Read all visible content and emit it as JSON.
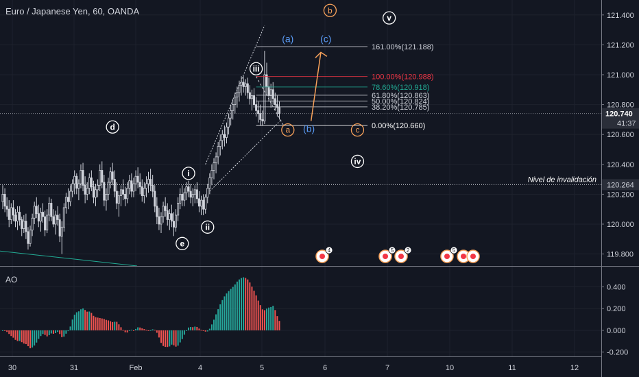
{
  "chart_data": {
    "type": "candlestick",
    "title": "Euro / Japanese Yen, 60, OANDA",
    "symbol": "EURJPY",
    "price_scale": {
      "ylim": [
        119.72,
        121.5
      ],
      "ticks": [
        "121.400",
        "121.200",
        "121.000",
        "120.800",
        "120.600",
        "120.400",
        "120.200",
        "120.000",
        "119.800"
      ],
      "tick_values": [
        121.4,
        121.2,
        121.0,
        120.8,
        120.6,
        120.4,
        120.2,
        120.0,
        119.8
      ],
      "current_price": "120.740",
      "countdown": "41:37",
      "invalidation_price": "120.264"
    },
    "time_axis": {
      "labels": [
        "30",
        "31",
        "Feb",
        "4",
        "5",
        "6",
        "7",
        "10",
        "11",
        "12"
      ]
    },
    "fib_levels": [
      {
        "label": "161.00%(121.188)",
        "value": 121.188,
        "color": "#d1d4dc"
      },
      {
        "label": "100.00%(120.988)",
        "value": 120.988,
        "color": "#f23645"
      },
      {
        "label": "78.60%(120.918)",
        "value": 120.918,
        "color": "#22ab94"
      },
      {
        "label": "61.80%(120.863)",
        "value": 120.863,
        "color": "#d1d4dc"
      },
      {
        "label": "50.00%(120.824)",
        "value": 120.824,
        "color": "#d1d4dc"
      },
      {
        "label": "38.20%(120.785)",
        "value": 120.785,
        "color": "#d1d4dc"
      },
      {
        "label": "0.00%(120.660)",
        "value": 120.66,
        "color": "#ffffff"
      }
    ],
    "invalidation_label": "Nivel de invalidación",
    "wave_labels": [
      {
        "text": "d",
        "style": "circle-white",
        "bar": 52,
        "price": 120.65
      },
      {
        "text": "e",
        "style": "circle-white",
        "bar": 85,
        "price": 119.87
      },
      {
        "text": "i",
        "style": "circle-white",
        "bar": 88,
        "price": 120.34
      },
      {
        "text": "ii",
        "style": "circle-white",
        "bar": 97,
        "price": 119.98
      },
      {
        "text": "iii",
        "style": "circle-white",
        "bar": 120,
        "price": 121.04
      },
      {
        "text": "iv",
        "style": "circle-white",
        "bar": 168,
        "price": 120.42
      },
      {
        "text": "v",
        "style": "circle-white",
        "bar": 183,
        "price": 121.38
      },
      {
        "text": "(a)",
        "style": "blue",
        "bar": 135,
        "price": 121.24
      },
      {
        "text": "(b)",
        "style": "blue",
        "bar": 145,
        "price": 120.64
      },
      {
        "text": "(c)",
        "style": "blue",
        "bar": 153,
        "price": 121.24
      },
      {
        "text": "a",
        "style": "circle-orange",
        "bar": 135,
        "price": 120.63
      },
      {
        "text": "b",
        "style": "circle-orange",
        "bar": 155,
        "price": 121.43
      },
      {
        "text": "c",
        "style": "circle-orange",
        "bar": 168,
        "price": 120.63
      }
    ],
    "event_badges": [
      "4",
      "5",
      "2",
      "5"
    ],
    "ao": {
      "name": "AO",
      "ticks": [
        "0.400",
        "0.200",
        "0.000",
        "-0.200"
      ],
      "tick_values": [
        0.4,
        0.2,
        0.0,
        -0.2
      ],
      "ylim": [
        -0.24,
        0.58
      ]
    },
    "ohlc": [
      [
        120.15,
        120.26,
        120.1,
        120.2
      ],
      [
        120.2,
        120.24,
        120.08,
        120.12
      ],
      [
        120.12,
        120.18,
        120.05,
        120.1
      ],
      [
        120.1,
        120.16,
        119.98,
        120.03
      ],
      [
        120.03,
        120.14,
        120.0,
        120.11
      ],
      [
        120.11,
        120.16,
        120.02,
        120.06
      ],
      [
        120.06,
        120.1,
        119.98,
        120.02
      ],
      [
        120.02,
        120.12,
        119.96,
        120.08
      ],
      [
        120.08,
        120.12,
        119.99,
        120.03
      ],
      [
        120.03,
        120.05,
        119.92,
        119.97
      ],
      [
        119.97,
        120.06,
        119.94,
        120.02
      ],
      [
        120.02,
        120.07,
        119.9,
        119.95
      ],
      [
        119.95,
        119.98,
        119.83,
        119.87
      ],
      [
        119.87,
        119.99,
        119.85,
        119.96
      ],
      [
        119.96,
        120.07,
        119.92,
        120.04
      ],
      [
        120.04,
        120.15,
        120.0,
        120.12
      ],
      [
        120.12,
        120.18,
        120.04,
        120.07
      ],
      [
        120.07,
        120.13,
        119.98,
        120.02
      ],
      [
        120.02,
        120.11,
        119.95,
        120.08
      ],
      [
        120.08,
        120.14,
        120.01,
        120.05
      ],
      [
        120.05,
        120.09,
        119.92,
        119.96
      ],
      [
        119.96,
        120.1,
        119.94,
        120.06
      ],
      [
        120.06,
        120.18,
        120.02,
        120.14
      ],
      [
        120.14,
        120.17,
        120.02,
        120.05
      ],
      [
        120.05,
        120.1,
        119.98,
        120.0
      ],
      [
        120.0,
        120.09,
        119.93,
        120.06
      ],
      [
        120.06,
        120.12,
        119.99,
        120.03
      ],
      [
        120.03,
        120.07,
        119.88,
        119.92
      ],
      [
        119.92,
        120.02,
        119.8,
        119.98
      ],
      [
        119.98,
        120.14,
        119.95,
        120.11
      ],
      [
        120.11,
        120.21,
        120.07,
        120.18
      ],
      [
        120.18,
        120.24,
        120.1,
        120.15
      ],
      [
        120.15,
        120.26,
        120.12,
        120.22
      ],
      [
        120.22,
        120.3,
        120.18,
        120.27
      ],
      [
        120.27,
        120.36,
        120.2,
        120.32
      ],
      [
        120.32,
        120.34,
        120.2,
        120.24
      ],
      [
        120.24,
        120.3,
        120.16,
        120.27
      ],
      [
        120.27,
        120.4,
        120.24,
        120.36
      ],
      [
        120.36,
        120.41,
        120.22,
        120.26
      ],
      [
        120.26,
        120.32,
        120.14,
        120.2
      ],
      [
        120.2,
        120.28,
        120.16,
        120.24
      ],
      [
        120.24,
        120.34,
        120.2,
        120.31
      ],
      [
        120.31,
        120.36,
        120.22,
        120.25
      ],
      [
        120.25,
        120.29,
        120.14,
        120.18
      ],
      [
        120.18,
        120.27,
        120.12,
        120.23
      ],
      [
        120.23,
        120.3,
        120.18,
        120.26
      ],
      [
        120.26,
        120.4,
        120.22,
        120.36
      ],
      [
        120.36,
        120.42,
        120.24,
        120.28
      ],
      [
        120.28,
        120.33,
        120.12,
        120.16
      ],
      [
        120.16,
        120.24,
        120.09,
        120.2
      ],
      [
        120.2,
        120.31,
        120.16,
        120.28
      ],
      [
        120.28,
        120.38,
        120.24,
        120.35
      ],
      [
        120.35,
        120.41,
        120.26,
        120.3
      ],
      [
        120.3,
        120.36,
        120.18,
        120.22
      ],
      [
        120.22,
        120.28,
        120.1,
        120.14
      ],
      [
        120.14,
        120.22,
        120.05,
        120.19
      ],
      [
        120.19,
        120.26,
        120.12,
        120.23
      ],
      [
        120.23,
        120.3,
        120.16,
        120.2
      ],
      [
        120.2,
        120.25,
        120.12,
        120.17
      ],
      [
        120.17,
        120.28,
        120.14,
        120.24
      ],
      [
        120.24,
        120.33,
        120.2,
        120.29
      ],
      [
        120.29,
        120.34,
        120.18,
        120.22
      ],
      [
        120.22,
        120.31,
        120.18,
        120.27
      ],
      [
        120.27,
        120.36,
        120.22,
        120.32
      ],
      [
        120.32,
        120.38,
        120.24,
        120.28
      ],
      [
        120.28,
        120.34,
        120.2,
        120.25
      ],
      [
        120.25,
        120.3,
        120.15,
        120.19
      ],
      [
        120.19,
        120.28,
        120.14,
        120.24
      ],
      [
        120.24,
        120.32,
        120.18,
        120.27
      ],
      [
        120.27,
        120.35,
        120.21,
        120.3
      ],
      [
        120.3,
        120.37,
        120.22,
        120.26
      ],
      [
        120.26,
        120.33,
        120.18,
        120.22
      ],
      [
        120.22,
        120.26,
        120.08,
        120.12
      ],
      [
        120.12,
        120.18,
        120.0,
        120.05
      ],
      [
        120.05,
        120.11,
        119.96,
        120.0
      ],
      [
        120.0,
        120.08,
        119.94,
        120.05
      ],
      [
        120.05,
        120.15,
        120.01,
        120.12
      ],
      [
        120.12,
        120.18,
        120.05,
        120.09
      ],
      [
        120.09,
        120.14,
        119.99,
        120.03
      ],
      [
        120.03,
        120.1,
        119.96,
        120.07
      ],
      [
        120.07,
        120.13,
        119.98,
        120.02
      ],
      [
        120.02,
        120.08,
        119.92,
        119.98
      ],
      [
        119.98,
        120.1,
        119.95,
        120.06
      ],
      [
        120.06,
        120.18,
        120.02,
        120.14
      ],
      [
        120.14,
        120.24,
        120.1,
        120.2
      ],
      [
        120.2,
        120.26,
        120.12,
        120.16
      ],
      [
        120.16,
        120.24,
        120.12,
        120.21
      ],
      [
        120.21,
        120.28,
        120.16,
        120.25
      ],
      [
        120.25,
        120.29,
        120.18,
        120.22
      ],
      [
        120.22,
        120.27,
        120.14,
        120.18
      ],
      [
        120.18,
        120.24,
        120.12,
        120.2
      ],
      [
        120.2,
        120.26,
        120.14,
        120.23
      ],
      [
        120.23,
        120.28,
        120.14,
        120.17
      ],
      [
        120.17,
        120.22,
        120.08,
        120.12
      ],
      [
        120.12,
        120.19,
        120.06,
        120.16
      ],
      [
        120.16,
        120.2,
        120.06,
        120.1
      ],
      [
        120.1,
        120.2,
        120.07,
        120.18
      ],
      [
        120.18,
        120.27,
        120.14,
        120.24
      ],
      [
        120.24,
        120.34,
        120.2,
        120.31
      ],
      [
        120.31,
        120.4,
        120.26,
        120.36
      ],
      [
        120.36,
        120.44,
        120.3,
        120.41
      ],
      [
        120.41,
        120.48,
        120.34,
        120.45
      ],
      [
        120.45,
        120.55,
        120.4,
        120.52
      ],
      [
        120.52,
        120.6,
        120.46,
        120.56
      ],
      [
        120.56,
        120.63,
        120.5,
        120.6
      ],
      [
        120.6,
        120.66,
        120.52,
        120.58
      ],
      [
        120.58,
        120.68,
        120.54,
        120.65
      ],
      [
        120.65,
        120.74,
        120.6,
        120.71
      ],
      [
        120.71,
        120.8,
        120.66,
        120.76
      ],
      [
        120.76,
        120.84,
        120.7,
        120.8
      ],
      [
        120.8,
        120.88,
        120.74,
        120.85
      ],
      [
        120.85,
        120.92,
        120.78,
        120.88
      ],
      [
        120.88,
        120.96,
        120.82,
        120.93
      ],
      [
        120.93,
        120.99,
        120.86,
        120.95
      ],
      [
        120.95,
        120.99,
        120.88,
        120.92
      ],
      [
        120.92,
        120.97,
        120.86,
        120.94
      ],
      [
        120.94,
        120.98,
        120.84,
        120.88
      ],
      [
        120.88,
        120.93,
        120.8,
        120.84
      ],
      [
        120.84,
        120.9,
        120.76,
        120.86
      ],
      [
        120.86,
        120.91,
        120.78,
        120.8
      ],
      [
        120.8,
        120.85,
        120.72,
        120.76
      ],
      [
        120.76,
        120.82,
        120.68,
        120.74
      ],
      [
        120.74,
        120.8,
        120.66,
        120.7
      ],
      [
        120.7,
        120.76,
        120.66,
        120.69
      ],
      [
        120.69,
        121.16,
        120.67,
        121.0
      ],
      [
        121.0,
        121.08,
        120.86,
        120.92
      ],
      [
        120.92,
        120.98,
        120.82,
        120.86
      ],
      [
        120.86,
        120.94,
        120.78,
        120.9
      ],
      [
        120.9,
        120.95,
        120.8,
        120.84
      ],
      [
        120.84,
        120.88,
        120.76,
        120.8
      ],
      [
        120.8,
        120.86,
        120.72,
        120.78
      ],
      [
        120.78,
        120.82,
        120.7,
        120.74
      ]
    ]
  }
}
